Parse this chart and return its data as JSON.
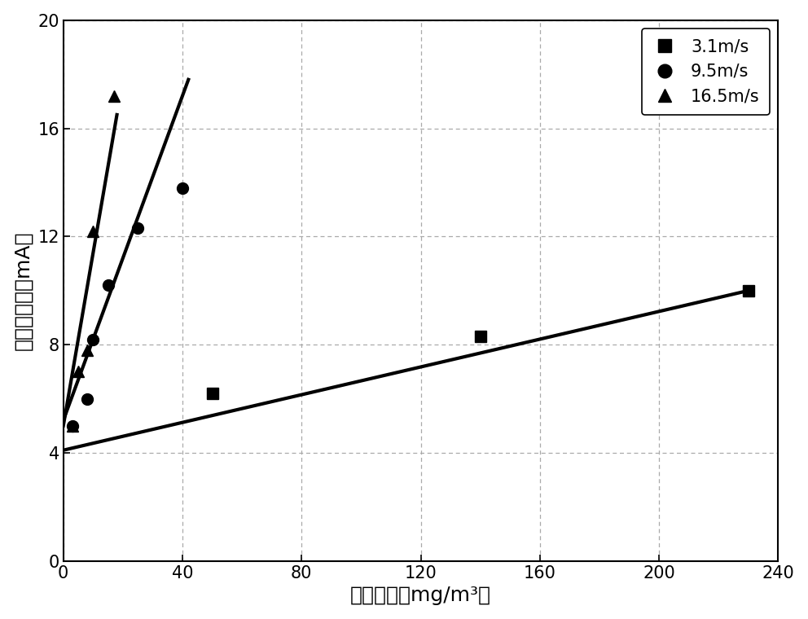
{
  "series": [
    {
      "label": "3.1m/s",
      "marker": "s",
      "x": [
        50,
        140,
        230
      ],
      "y": [
        6.2,
        8.3,
        10.0
      ],
      "fit_x": [
        0,
        230
      ],
      "fit_y": [
        4.1,
        10.0
      ]
    },
    {
      "label": "9.5m/s",
      "marker": "o",
      "x": [
        3,
        8,
        10,
        15,
        25,
        40
      ],
      "y": [
        5.0,
        6.0,
        8.2,
        10.2,
        12.3,
        13.8
      ],
      "fit_x": [
        0,
        42
      ],
      "fit_y": [
        5.2,
        17.8
      ]
    },
    {
      "label": "16.5m/s",
      "marker": "^",
      "x": [
        3,
        5,
        8,
        10,
        17
      ],
      "y": [
        5.0,
        7.0,
        7.8,
        12.2,
        17.2
      ],
      "fit_x": [
        0,
        18
      ],
      "fit_y": [
        5.0,
        16.5
      ]
    }
  ],
  "xlabel": "飞灰浓度（mg/m³）",
  "ylabel": "电流输出値（mA）",
  "xlim": [
    0,
    240
  ],
  "ylim": [
    0,
    20
  ],
  "xticks": [
    0,
    40,
    80,
    120,
    160,
    200,
    240
  ],
  "yticks": [
    0,
    4,
    8,
    12,
    16,
    20
  ],
  "grid_color": "#aaaaaa",
  "line_color": "#000000",
  "marker_color": "#000000",
  "background_color": "#ffffff",
  "xlabel_fontsize": 18,
  "ylabel_fontsize": 18,
  "legend_fontsize": 15,
  "tick_fontsize": 15
}
